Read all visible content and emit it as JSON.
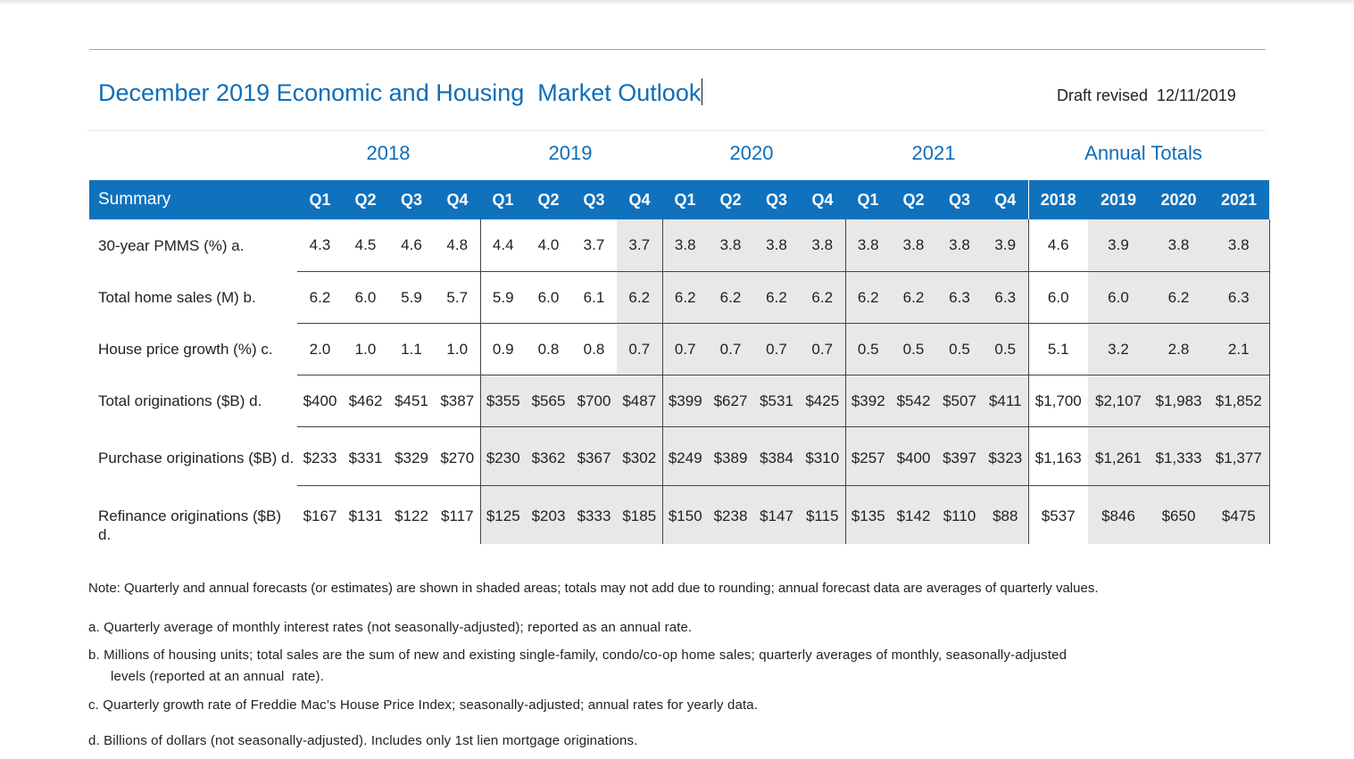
{
  "title": "December 2019 Economic and Housing  Market Outlook",
  "draft": "Draft revised  12/11/2019",
  "year_groups": [
    "2018",
    "2019",
    "2020",
    "2021",
    "Annual Totals"
  ],
  "header": {
    "summary": "Summary",
    "quarters": [
      "Q1",
      "Q2",
      "Q3",
      "Q4",
      "Q1",
      "Q2",
      "Q3",
      "Q4",
      "Q1",
      "Q2",
      "Q3",
      "Q4",
      "Q1",
      "Q2",
      "Q3",
      "Q4"
    ],
    "annual": [
      "2018",
      "2019",
      "2020",
      "2021"
    ]
  },
  "rows": [
    {
      "label": "30-year PMMS (%) a.",
      "values": [
        "4.3",
        "4.5",
        "4.6",
        "4.8",
        "4.4",
        "4.0",
        "3.7",
        "3.7",
        "3.8",
        "3.8",
        "3.8",
        "3.8",
        "3.8",
        "3.8",
        "3.8",
        "3.9"
      ],
      "annual": [
        "4.6",
        "3.9",
        "3.8",
        "3.8"
      ]
    },
    {
      "label": "Total home sales (M) b.",
      "values": [
        "6.2",
        "6.0",
        "5.9",
        "5.7",
        "5.9",
        "6.0",
        "6.1",
        "6.2",
        "6.2",
        "6.2",
        "6.2",
        "6.2",
        "6.2",
        "6.2",
        "6.3",
        "6.3"
      ],
      "annual": [
        "6.0",
        "6.0",
        "6.2",
        "6.3"
      ]
    },
    {
      "label": "House price growth (%) c.",
      "values": [
        "2.0",
        "1.0",
        "1.1",
        "1.0",
        "0.9",
        "0.8",
        "0.8",
        "0.7",
        "0.7",
        "0.7",
        "0.7",
        "0.7",
        "0.5",
        "0.5",
        "0.5",
        "0.5"
      ],
      "annual": [
        "5.1",
        "3.2",
        "2.8",
        "2.1"
      ]
    },
    {
      "label": "Total originations ($B) d.",
      "values": [
        "$400",
        "$462",
        "$451",
        "$387",
        "$355",
        "$565",
        "$700",
        "$487",
        "$399",
        "$627",
        "$531",
        "$425",
        "$392",
        "$542",
        "$507",
        "$411"
      ],
      "annual": [
        "$1,700",
        "$2,107",
        "$1,983",
        "$1,852"
      ]
    },
    {
      "label": "Purchase originations ($B) d.",
      "values": [
        "$233",
        "$331",
        "$329",
        "$270",
        "$230",
        "$362",
        "$367",
        "$302",
        "$249",
        "$389",
        "$384",
        "$310",
        "$257",
        "$400",
        "$397",
        "$323"
      ],
      "annual": [
        "$1,163",
        "$1,261",
        "$1,333",
        "$1,377"
      ]
    },
    {
      "label": "Refinance originations ($B) d.",
      "values": [
        "$167",
        "$131",
        "$122",
        "$117",
        "$125",
        "$203",
        "$333",
        "$185",
        "$150",
        "$238",
        "$147",
        "$115",
        "$135",
        "$142",
        "$110",
        "$88"
      ],
      "annual": [
        "$537",
        "$846",
        "$650",
        "$475"
      ]
    }
  ],
  "note": "Note: Quarterly and annual forecasts (or estimates) are shown in shaded areas; totals may not add due to rounding; annual forecast data are averages of quarterly values.",
  "footnotes": {
    "a": "a. Quarterly average of monthly interest rates (not seasonally-adjusted); reported as an annual rate.",
    "b1": "b. Millions of housing units; total sales are the sum of new and existing single-family, condo/co-op home sales; quarterly averages of monthly, seasonally-adjusted",
    "b2": "levels (reported at an annual  rate).",
    "c": "c. Quarterly growth rate of Freddie Mac’s House Price Index; seasonally-adjusted; annual rates for yearly data.",
    "d": "d. Billions of dollars (not seasonally-adjusted). Includes only 1st lien mortgage originations."
  },
  "colors": {
    "accent": "#1071bd",
    "title": "#0f6db8",
    "shade": "#e8e8ea",
    "rule": "#9bbb59"
  }
}
